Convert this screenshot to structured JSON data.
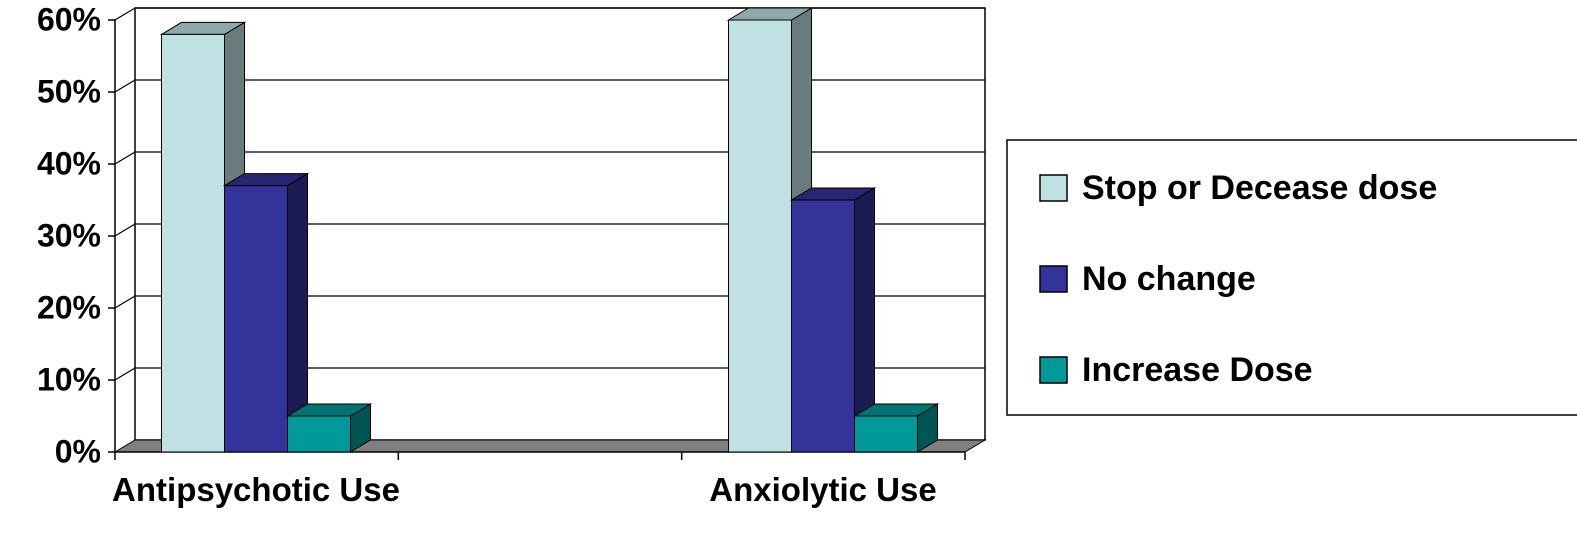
{
  "chart_data": {
    "type": "bar3d",
    "categories": [
      "Antipsychotic Use",
      "Anxiolytic Use"
    ],
    "series": [
      {
        "name": "Stop or Decease dose",
        "color": "#bfe1e4",
        "values": [
          58,
          60
        ]
      },
      {
        "name": "No change",
        "color": "#333399",
        "values": [
          37,
          35
        ]
      },
      {
        "name": "Increase Dose",
        "color": "#009999",
        "values": [
          5,
          5
        ]
      }
    ],
    "ylim": [
      0,
      60
    ],
    "yticks": [
      {
        "value": 0,
        "label": "0%"
      },
      {
        "value": 10,
        "label": "10%"
      },
      {
        "value": 20,
        "label": "20%"
      },
      {
        "value": 30,
        "label": "30%"
      },
      {
        "value": 40,
        "label": "40%"
      },
      {
        "value": 50,
        "label": "50%"
      },
      {
        "value": 60,
        "label": "60%"
      }
    ],
    "grid": true,
    "legend": "right"
  }
}
